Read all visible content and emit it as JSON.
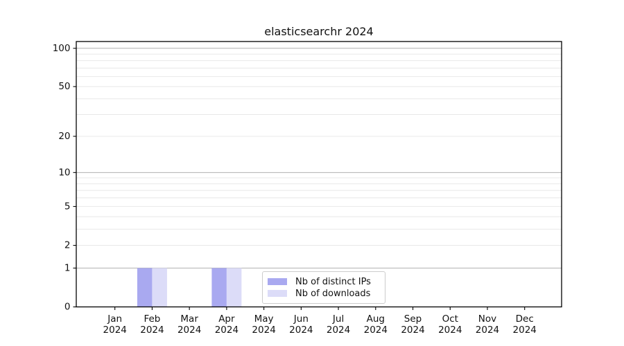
{
  "chart_data": {
    "type": "bar",
    "title": "elasticsearchr 2024",
    "year_label": "2024",
    "categories": [
      "Jan",
      "Feb",
      "Mar",
      "Apr",
      "May",
      "Jun",
      "Jul",
      "Aug",
      "Sep",
      "Oct",
      "Nov",
      "Dec"
    ],
    "series": [
      {
        "name": "Nb of distinct IPs",
        "color": "#a9a9f0",
        "values": [
          0,
          1,
          0,
          1,
          0,
          0,
          0,
          0,
          0,
          0,
          0,
          0
        ]
      },
      {
        "name": "Nb of downloads",
        "color": "#dcdcf8",
        "values": [
          0,
          1,
          0,
          1,
          0,
          0,
          0,
          0,
          0,
          0,
          0,
          0
        ]
      }
    ],
    "yscale": "log1p",
    "ylim": [
      0,
      113
    ],
    "y_ticks": [
      0,
      1,
      2,
      5,
      10,
      20,
      50,
      100
    ],
    "y_gridlines_major": [
      1,
      10,
      100
    ],
    "y_gridlines_minor": [
      2,
      3,
      4,
      5,
      6,
      7,
      8,
      9,
      20,
      30,
      40,
      50,
      60,
      70,
      80,
      90
    ],
    "xlabel": "",
    "ylabel": "",
    "grid": "horizontal (major + faint minor)",
    "legend": {
      "position": "inside-bottom-center"
    },
    "colors": {
      "background": "#ffffff",
      "axis": "#000000",
      "text": "#111111",
      "grid_major": "#b0b0b0",
      "grid_minor": "#e8e8e8"
    }
  }
}
